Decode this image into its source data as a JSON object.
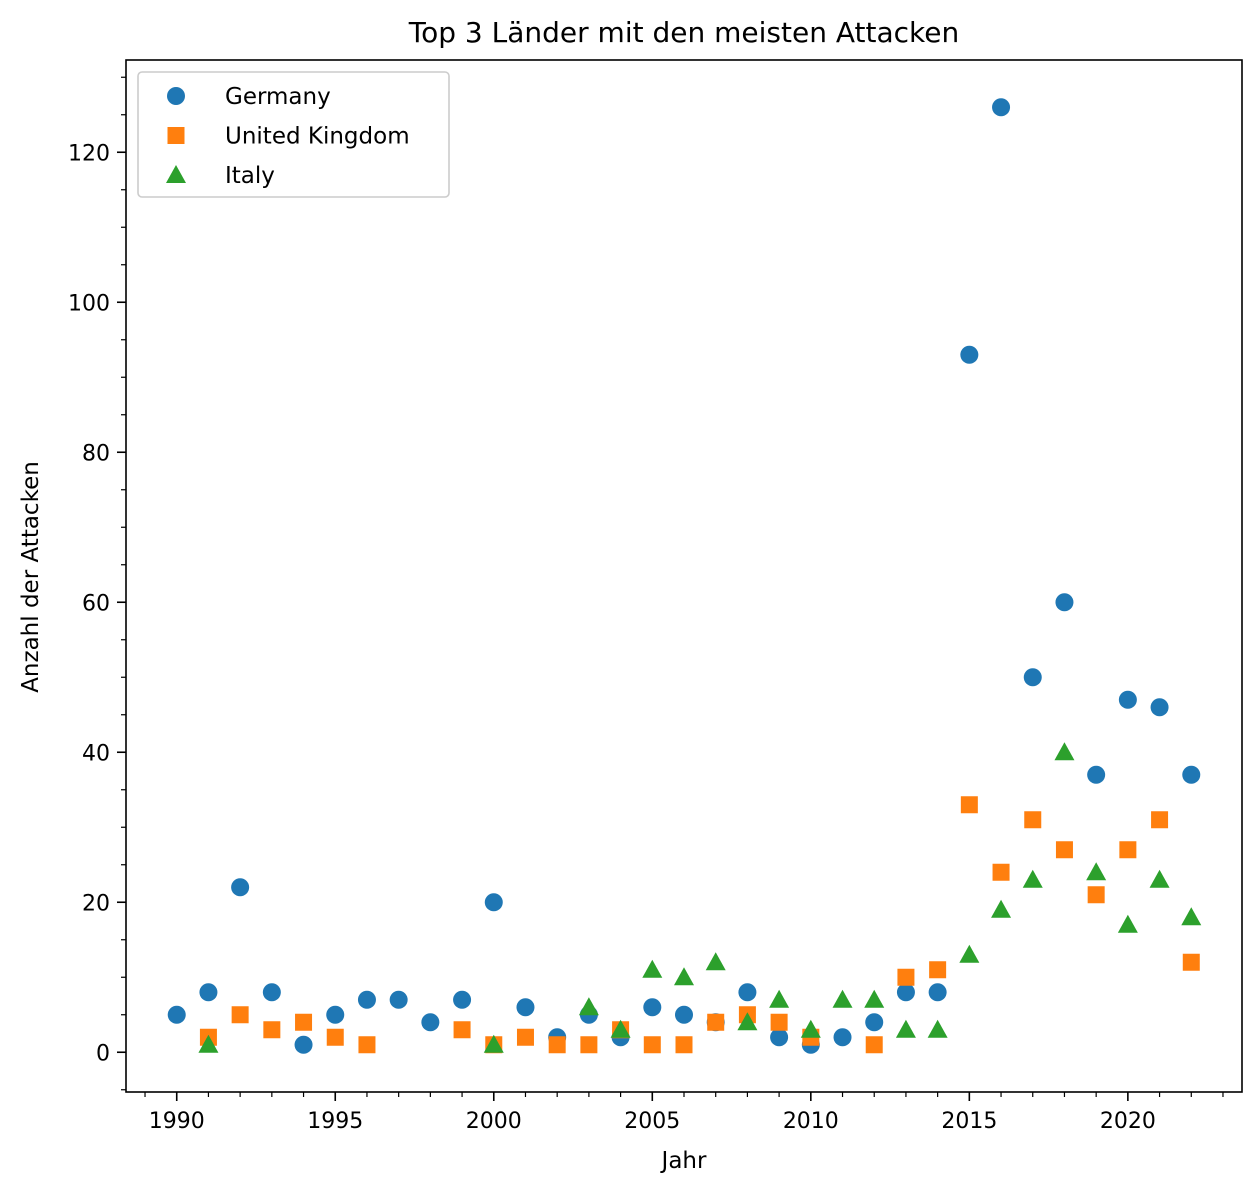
{
  "chart_data": {
    "type": "scatter",
    "title": "Top 3 Länder mit den meisten Attacken",
    "xlabel": "Jahr",
    "ylabel": "Anzahl der Attacken",
    "xlim": [
      1988.4,
      1990.0
    ],
    "ylim": [
      -5.3,
      132.3
    ],
    "x_ticks": [
      1990,
      1995,
      2000,
      2005,
      2010,
      2015,
      2020
    ],
    "y_ticks": [
      0,
      20,
      40,
      60,
      80,
      100,
      120
    ],
    "grid": false,
    "legend_position": "top-left",
    "series": [
      {
        "name": "Germany",
        "marker": "circle",
        "color": "#1f77b4",
        "points": [
          [
            1990,
            5
          ],
          [
            1991,
            8
          ],
          [
            1992,
            22
          ],
          [
            1993,
            8
          ],
          [
            1994,
            1
          ],
          [
            1995,
            5
          ],
          [
            1996,
            7
          ],
          [
            1997,
            7
          ],
          [
            1998,
            4
          ],
          [
            1999,
            7
          ],
          [
            2000,
            20
          ],
          [
            2001,
            6
          ],
          [
            2002,
            2
          ],
          [
            2003,
            5
          ],
          [
            2004,
            2
          ],
          [
            2005,
            6
          ],
          [
            2006,
            5
          ],
          [
            2007,
            4
          ],
          [
            2008,
            8
          ],
          [
            2009,
            2
          ],
          [
            2010,
            1
          ],
          [
            2011,
            2
          ],
          [
            2012,
            4
          ],
          [
            2013,
            8
          ],
          [
            2014,
            8
          ],
          [
            2015,
            93
          ],
          [
            2016,
            126
          ],
          [
            2017,
            50
          ],
          [
            2018,
            60
          ],
          [
            2019,
            37
          ],
          [
            2020,
            47
          ],
          [
            2021,
            46
          ],
          [
            2022,
            37
          ]
        ]
      },
      {
        "name": "United Kingdom",
        "marker": "square",
        "color": "#ff7f0e",
        "points": [
          [
            1991,
            2
          ],
          [
            1992,
            5
          ],
          [
            1993,
            3
          ],
          [
            1994,
            4
          ],
          [
            1995,
            2
          ],
          [
            1996,
            1
          ],
          [
            1999,
            3
          ],
          [
            2000,
            1
          ],
          [
            2001,
            2
          ],
          [
            2002,
            1
          ],
          [
            2003,
            1
          ],
          [
            2004,
            3
          ],
          [
            2005,
            1
          ],
          [
            2006,
            1
          ],
          [
            2007,
            4
          ],
          [
            2008,
            5
          ],
          [
            2009,
            4
          ],
          [
            2010,
            2
          ],
          [
            2012,
            1
          ],
          [
            2013,
            10
          ],
          [
            2014,
            11
          ],
          [
            2015,
            33
          ],
          [
            2016,
            24
          ],
          [
            2017,
            31
          ],
          [
            2018,
            27
          ],
          [
            2019,
            21
          ],
          [
            2020,
            27
          ],
          [
            2021,
            31
          ],
          [
            2022,
            12
          ]
        ]
      },
      {
        "name": "Italy",
        "marker": "triangle",
        "color": "#2ca02c",
        "points": [
          [
            1991,
            1
          ],
          [
            2000,
            1
          ],
          [
            2003,
            6
          ],
          [
            2004,
            3
          ],
          [
            2005,
            11
          ],
          [
            2006,
            10
          ],
          [
            2007,
            12
          ],
          [
            2008,
            4
          ],
          [
            2009,
            7
          ],
          [
            2010,
            3
          ],
          [
            2011,
            7
          ],
          [
            2012,
            7
          ],
          [
            2013,
            3
          ],
          [
            2014,
            3
          ],
          [
            2015,
            13
          ],
          [
            2016,
            19
          ],
          [
            2017,
            23
          ],
          [
            2018,
            40
          ],
          [
            2019,
            24
          ],
          [
            2020,
            17
          ],
          [
            2021,
            23
          ],
          [
            2022,
            18
          ]
        ]
      }
    ]
  }
}
